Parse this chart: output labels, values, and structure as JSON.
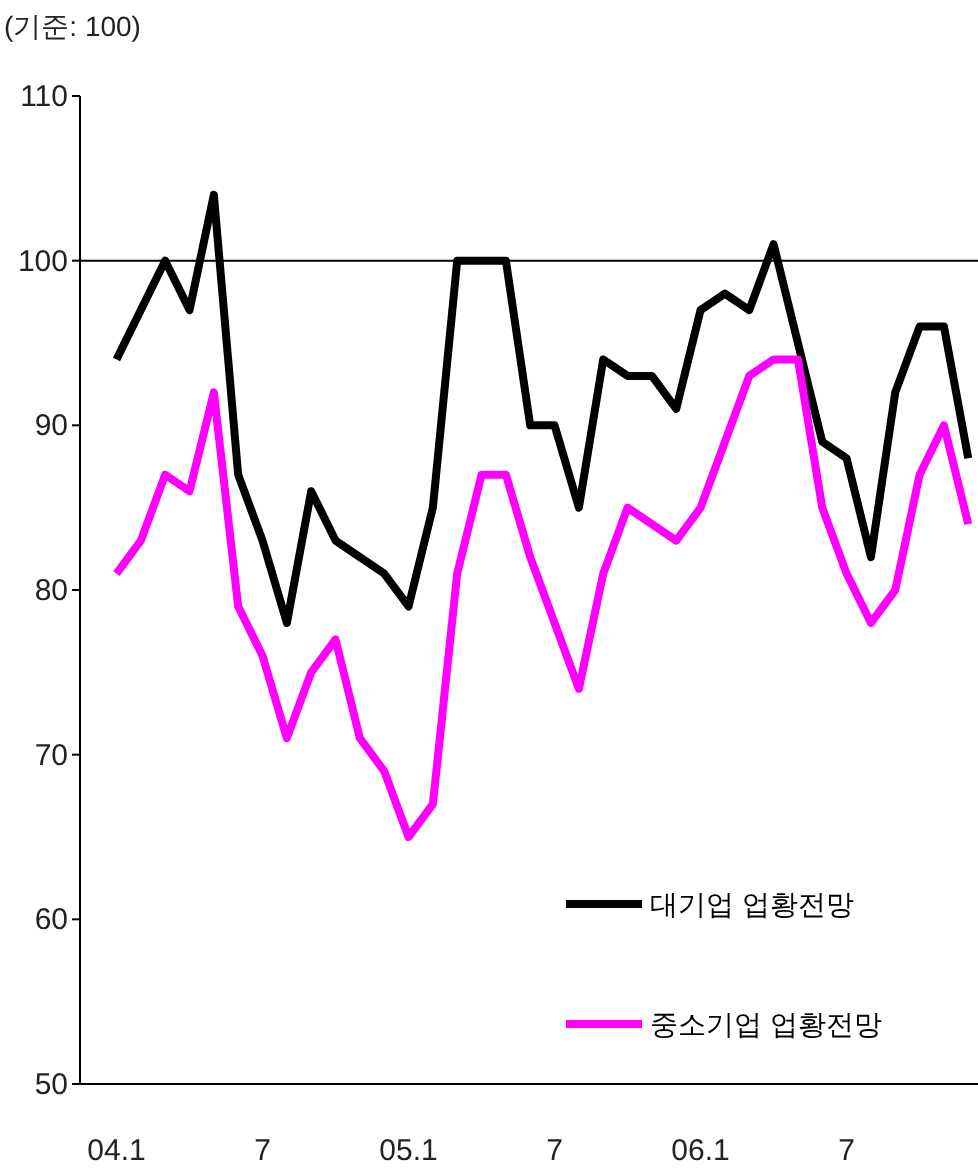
{
  "chart_data": {
    "type": "line",
    "ylabel": "(기준: 100)",
    "categories": [
      "04.1",
      null,
      null,
      null,
      null,
      null,
      "7",
      null,
      null,
      null,
      null,
      null,
      "05.1",
      null,
      null,
      null,
      null,
      null,
      "7",
      null,
      null,
      null,
      null,
      null,
      "06.1",
      null,
      null,
      null,
      null,
      null,
      "7",
      null,
      null,
      null,
      null,
      null
    ],
    "series": [
      {
        "name": "대기업 업황전망",
        "color": "#000000",
        "values": [
          94,
          97,
          100,
          97,
          104,
          87,
          83,
          78,
          86,
          83,
          82,
          81,
          79,
          85,
          100,
          100,
          100,
          90,
          90,
          85,
          94,
          93,
          93,
          91,
          97,
          98,
          97,
          101,
          95,
          89,
          88,
          82,
          92,
          96,
          96,
          88
        ]
      },
      {
        "name": "중소기업 업황전망",
        "color": "#ff00ff",
        "values": [
          81,
          83,
          87,
          86,
          92,
          79,
          76,
          71,
          75,
          77,
          71,
          69,
          65,
          67,
          81,
          87,
          87,
          82,
          78,
          74,
          81,
          85,
          84,
          83,
          85,
          89,
          93,
          94,
          94,
          85,
          81,
          78,
          80,
          87,
          90,
          84
        ]
      }
    ],
    "ylim": [
      50,
      110
    ],
    "yticks": [
      50,
      60,
      70,
      80,
      90,
      100,
      110
    ],
    "ref_lines": [
      {
        "axis": "y",
        "value": 100,
        "color": "#000000"
      }
    ],
    "grid": false,
    "legend": "bottom right",
    "marker": "none",
    "line_style": "solid"
  }
}
